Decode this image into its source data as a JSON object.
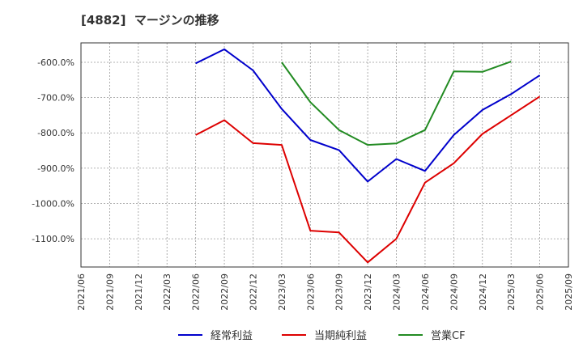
{
  "title": "[4882]  マージンの推移",
  "chart_data": {
    "type": "line",
    "title": "[4882]  マージンの推移",
    "xlabel": "",
    "ylabel": "",
    "x": [
      "2021/06",
      "2021/09",
      "2021/12",
      "2022/03",
      "2022/06",
      "2022/09",
      "2022/12",
      "2023/03",
      "2023/06",
      "2023/09",
      "2023/12",
      "2024/03",
      "2024/06",
      "2024/09",
      "2024/12",
      "2025/03",
      "2025/06",
      "2025/09"
    ],
    "y_ticks": [
      -600,
      -700,
      -800,
      -900,
      -1000,
      -1100
    ],
    "y_tick_labels": [
      "-600.0%",
      "-700.0%",
      "-800.0%",
      "-900.0%",
      "-1000.0%",
      "-1100.0%"
    ],
    "ylim": [
      -1180,
      -545
    ],
    "grid": true,
    "legend_position": "bottom",
    "series": [
      {
        "name": "経常利益",
        "color": "#0000cc",
        "values": [
          null,
          null,
          null,
          null,
          -603,
          -563,
          -623,
          -732,
          -820,
          -849,
          -938,
          -874,
          -908,
          -806,
          -735,
          -690,
          -637,
          null
        ]
      },
      {
        "name": "当期純利益",
        "color": "#dd0000",
        "values": [
          null,
          null,
          null,
          null,
          -806,
          -764,
          -829,
          -834,
          -1077,
          -1082,
          -1167,
          -1100,
          -941,
          -886,
          -803,
          -750,
          -697,
          null
        ]
      },
      {
        "name": "営業CF",
        "color": "#228b22",
        "values": [
          null,
          null,
          null,
          null,
          null,
          null,
          null,
          -600,
          -713,
          -792,
          -834,
          -830,
          -792,
          -626,
          -627,
          -598,
          null,
          null
        ]
      }
    ]
  }
}
